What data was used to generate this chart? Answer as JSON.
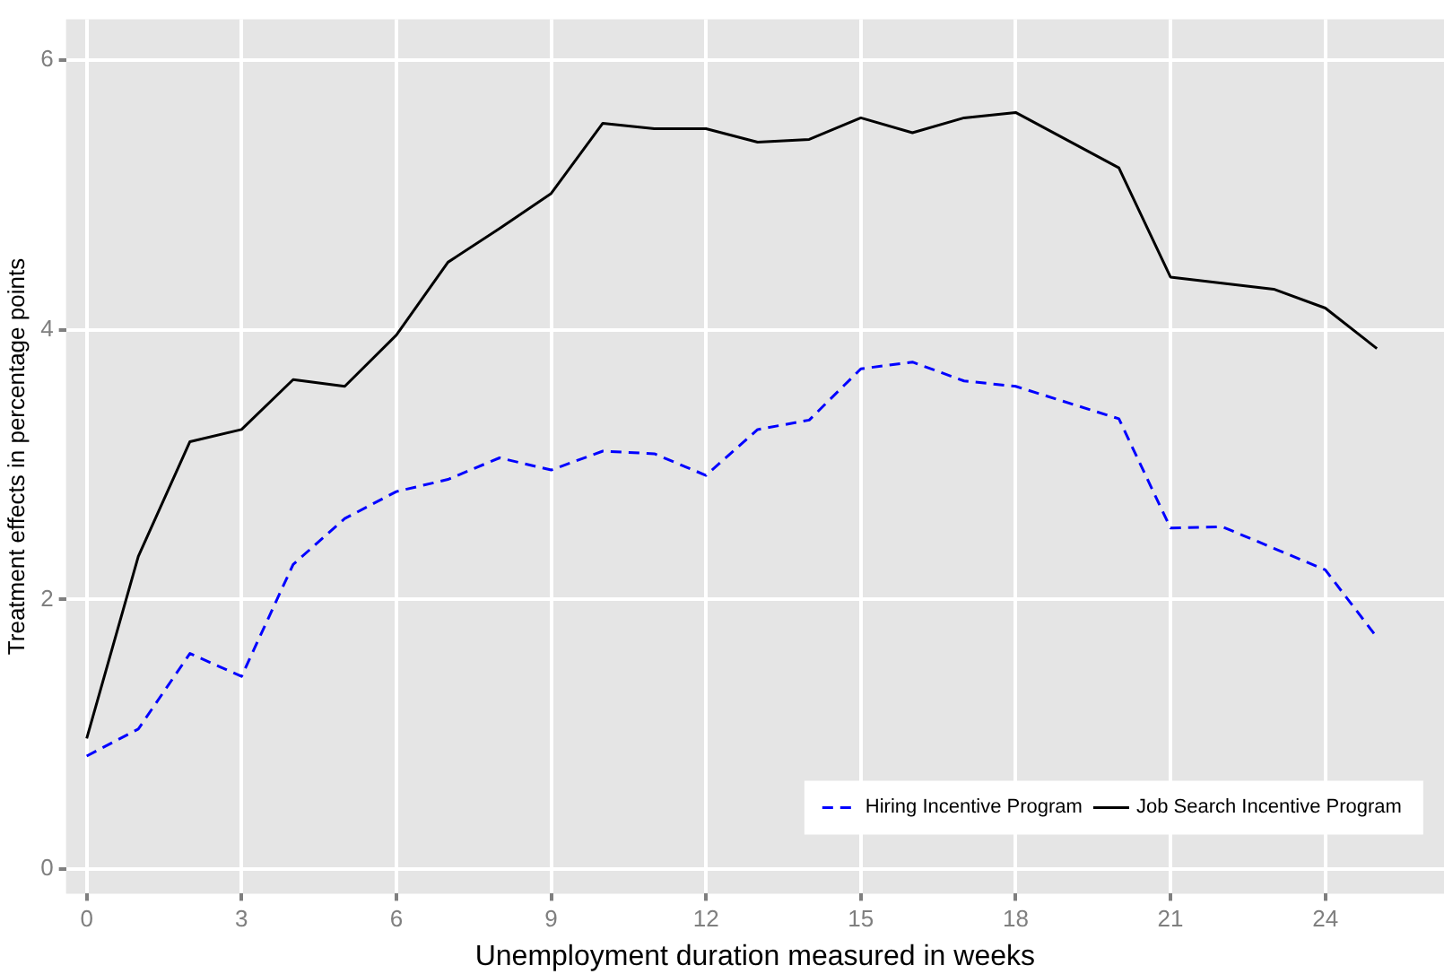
{
  "chart_data": {
    "type": "line",
    "xlabel": "Unemployment duration measured in weeks",
    "ylabel": "Treatment effects in percentage points",
    "xlim": [
      -0.4,
      26.3
    ],
    "xticks": [
      0,
      3,
      6,
      9,
      12,
      15,
      18,
      21,
      24
    ],
    "ylim": [
      -0.18,
      6.3
    ],
    "yticks": [
      0,
      2,
      4,
      6
    ],
    "grid": true,
    "legend": "bottom right",
    "marker": "none",
    "series": [
      {
        "name": "Hiring Incentive Program",
        "color": "#0000ff",
        "line_style": "dashed",
        "x": [
          0,
          1,
          2,
          3,
          4,
          5,
          6,
          7,
          8,
          9,
          10,
          11,
          12,
          13,
          14,
          15,
          16,
          17,
          18,
          20,
          21,
          22,
          23,
          24,
          25
        ],
        "values": [
          0.84,
          1.04,
          1.6,
          1.43,
          2.26,
          2.6,
          2.8,
          2.89,
          3.05,
          2.96,
          3.1,
          3.08,
          2.92,
          3.26,
          3.33,
          3.71,
          3.76,
          3.62,
          3.58,
          3.34,
          2.53,
          2.54,
          2.38,
          2.22,
          1.72
        ]
      },
      {
        "name": "Job Search Incentive Program",
        "color": "#000000",
        "line_style": "solid",
        "x": [
          0,
          1,
          2,
          3,
          4,
          5,
          6,
          7,
          8,
          9,
          10,
          11,
          12,
          13,
          14,
          15,
          16,
          17,
          18,
          20,
          21,
          23,
          24,
          25
        ],
        "values": [
          0.97,
          2.32,
          3.17,
          3.26,
          3.63,
          3.58,
          3.96,
          4.5,
          4.75,
          5.01,
          5.53,
          5.49,
          5.49,
          5.39,
          5.41,
          5.57,
          5.46,
          5.57,
          5.61,
          5.2,
          4.39,
          4.3,
          4.16,
          3.86
        ]
      }
    ]
  }
}
